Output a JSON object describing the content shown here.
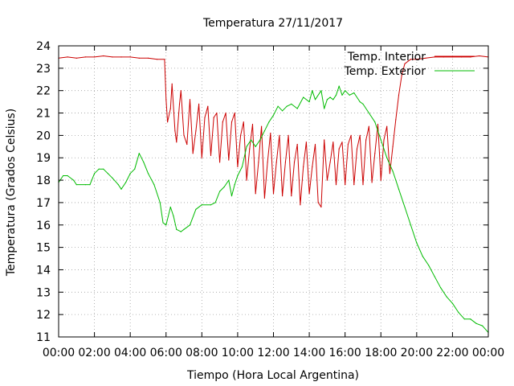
{
  "chart_data": {
    "type": "line",
    "title": "Temperatura 27/11/2017",
    "xlabel": "Tiempo (Hora Local Argentina)",
    "ylabel": "Temperatura (Grados Celsius)",
    "xlim": [
      "00:00",
      "24:00"
    ],
    "ylim": [
      11,
      24
    ],
    "grid": true,
    "legend_position": "top-right",
    "x_tick_labels": [
      "00:00",
      "02:00",
      "04:00",
      "06:00",
      "08:00",
      "10:00",
      "12:00",
      "14:00",
      "16:00",
      "18:00",
      "20:00",
      "22:00",
      "00:00"
    ],
    "y_tick_labels": [
      "11",
      "12",
      "13",
      "14",
      "15",
      "16",
      "17",
      "18",
      "19",
      "20",
      "21",
      "22",
      "23",
      "24"
    ],
    "series": [
      {
        "name": "Temp. Interior",
        "color": "#cc0000",
        "points": [
          [
            "00:00",
            23.45
          ],
          [
            "00:30",
            23.5
          ],
          [
            "01:00",
            23.45
          ],
          [
            "01:30",
            23.5
          ],
          [
            "02:00",
            23.5
          ],
          [
            "02:30",
            23.55
          ],
          [
            "03:00",
            23.5
          ],
          [
            "03:30",
            23.5
          ],
          [
            "04:00",
            23.5
          ],
          [
            "04:30",
            23.45
          ],
          [
            "05:00",
            23.45
          ],
          [
            "05:30",
            23.4
          ],
          [
            "05:55",
            23.4
          ],
          [
            "06:00",
            21.6
          ],
          [
            "06:05",
            20.6
          ],
          [
            "06:15",
            21.2
          ],
          [
            "06:20",
            22.3
          ],
          [
            "06:30",
            20.2
          ],
          [
            "06:35",
            19.7
          ],
          [
            "06:45",
            21.4
          ],
          [
            "06:50",
            22.0
          ],
          [
            "07:00",
            20.0
          ],
          [
            "07:10",
            19.6
          ],
          [
            "07:20",
            21.6
          ],
          [
            "07:30",
            19.2
          ],
          [
            "07:40",
            20.2
          ],
          [
            "07:50",
            21.4
          ],
          [
            "08:00",
            19.0
          ],
          [
            "08:10",
            20.8
          ],
          [
            "08:20",
            21.3
          ],
          [
            "08:30",
            19.1
          ],
          [
            "08:40",
            20.8
          ],
          [
            "08:50",
            21.0
          ],
          [
            "09:00",
            18.8
          ],
          [
            "09:10",
            20.6
          ],
          [
            "09:20",
            21.0
          ],
          [
            "09:30",
            18.9
          ],
          [
            "09:40",
            20.6
          ],
          [
            "09:50",
            21.0
          ],
          [
            "10:00",
            18.6
          ],
          [
            "10:10",
            20.0
          ],
          [
            "10:20",
            20.6
          ],
          [
            "10:30",
            18.0
          ],
          [
            "10:40",
            19.4
          ],
          [
            "10:50",
            20.5
          ],
          [
            "11:00",
            17.4
          ],
          [
            "11:10",
            18.8
          ],
          [
            "11:20",
            20.4
          ],
          [
            "11:30",
            17.2
          ],
          [
            "11:40",
            18.8
          ],
          [
            "11:50",
            20.1
          ],
          [
            "12:00",
            17.4
          ],
          [
            "12:10",
            18.8
          ],
          [
            "12:20",
            20.0
          ],
          [
            "12:30",
            17.3
          ],
          [
            "12:40",
            18.8
          ],
          [
            "12:50",
            20.0
          ],
          [
            "13:00",
            17.3
          ],
          [
            "13:10",
            18.8
          ],
          [
            "13:20",
            19.6
          ],
          [
            "13:30",
            16.9
          ],
          [
            "13:40",
            18.6
          ],
          [
            "13:50",
            19.7
          ],
          [
            "14:00",
            17.4
          ],
          [
            "14:10",
            18.6
          ],
          [
            "14:20",
            19.6
          ],
          [
            "14:30",
            17.0
          ],
          [
            "14:40",
            16.8
          ],
          [
            "14:50",
            19.8
          ],
          [
            "15:00",
            18.0
          ],
          [
            "15:10",
            18.8
          ],
          [
            "15:20",
            19.7
          ],
          [
            "15:30",
            17.8
          ],
          [
            "15:40",
            19.4
          ],
          [
            "15:50",
            19.7
          ],
          [
            "16:00",
            17.8
          ],
          [
            "16:10",
            19.6
          ],
          [
            "16:20",
            20.0
          ],
          [
            "16:30",
            17.8
          ],
          [
            "16:40",
            19.4
          ],
          [
            "16:50",
            20.0
          ],
          [
            "17:00",
            17.8
          ],
          [
            "17:10",
            19.8
          ],
          [
            "17:20",
            20.4
          ],
          [
            "17:30",
            17.9
          ],
          [
            "17:40",
            19.2
          ],
          [
            "17:50",
            20.5
          ],
          [
            "18:00",
            18.0
          ],
          [
            "18:10",
            19.8
          ],
          [
            "18:20",
            20.4
          ],
          [
            "18:30",
            18.3
          ],
          [
            "18:40",
            19.5
          ],
          [
            "18:50",
            20.7
          ],
          [
            "19:00",
            21.8
          ],
          [
            "19:10",
            22.7
          ],
          [
            "19:20",
            23.2
          ],
          [
            "19:40",
            23.4
          ],
          [
            "20:00",
            23.4
          ],
          [
            "20:30",
            23.45
          ],
          [
            "21:00",
            23.5
          ],
          [
            "21:30",
            23.5
          ],
          [
            "22:00",
            23.5
          ],
          [
            "22:30",
            23.5
          ],
          [
            "23:00",
            23.5
          ],
          [
            "23:30",
            23.55
          ],
          [
            "24:00",
            23.5
          ]
        ]
      },
      {
        "name": "Temp. Exterior",
        "color": "#00bb00",
        "points": [
          [
            "00:00",
            17.9
          ],
          [
            "00:15",
            18.2
          ],
          [
            "00:30",
            18.2
          ],
          [
            "00:50",
            18.0
          ],
          [
            "01:00",
            17.8
          ],
          [
            "01:30",
            17.8
          ],
          [
            "01:45",
            17.8
          ],
          [
            "02:00",
            18.3
          ],
          [
            "02:15",
            18.5
          ],
          [
            "02:30",
            18.5
          ],
          [
            "02:45",
            18.3
          ],
          [
            "03:00",
            18.1
          ],
          [
            "03:20",
            17.8
          ],
          [
            "03:30",
            17.6
          ],
          [
            "03:45",
            17.9
          ],
          [
            "04:00",
            18.3
          ],
          [
            "04:15",
            18.5
          ],
          [
            "04:30",
            19.2
          ],
          [
            "04:45",
            18.8
          ],
          [
            "05:00",
            18.3
          ],
          [
            "05:20",
            17.8
          ],
          [
            "05:40",
            17.0
          ],
          [
            "05:50",
            16.1
          ],
          [
            "06:00",
            16.0
          ],
          [
            "06:15",
            16.8
          ],
          [
            "06:25",
            16.4
          ],
          [
            "06:35",
            15.8
          ],
          [
            "06:50",
            15.7
          ],
          [
            "07:00",
            15.8
          ],
          [
            "07:20",
            16.0
          ],
          [
            "07:40",
            16.7
          ],
          [
            "08:00",
            16.9
          ],
          [
            "08:30",
            16.9
          ],
          [
            "08:45",
            17.0
          ],
          [
            "09:00",
            17.5
          ],
          [
            "09:15",
            17.7
          ],
          [
            "09:30",
            18.0
          ],
          [
            "09:40",
            17.3
          ],
          [
            "09:50",
            17.8
          ],
          [
            "10:00",
            18.2
          ],
          [
            "10:15",
            18.6
          ],
          [
            "10:30",
            19.5
          ],
          [
            "10:45",
            19.8
          ],
          [
            "11:00",
            19.5
          ],
          [
            "11:15",
            19.8
          ],
          [
            "11:30",
            20.2
          ],
          [
            "11:45",
            20.6
          ],
          [
            "12:00",
            20.9
          ],
          [
            "12:15",
            21.3
          ],
          [
            "12:30",
            21.1
          ],
          [
            "12:45",
            21.3
          ],
          [
            "13:00",
            21.4
          ],
          [
            "13:20",
            21.2
          ],
          [
            "13:40",
            21.7
          ],
          [
            "14:00",
            21.5
          ],
          [
            "14:10",
            22.0
          ],
          [
            "14:20",
            21.6
          ],
          [
            "14:40",
            22.0
          ],
          [
            "14:50",
            21.2
          ],
          [
            "15:00",
            21.6
          ],
          [
            "15:10",
            21.7
          ],
          [
            "15:20",
            21.6
          ],
          [
            "15:30",
            21.8
          ],
          [
            "15:40",
            22.2
          ],
          [
            "15:50",
            21.8
          ],
          [
            "16:00",
            22.0
          ],
          [
            "16:15",
            21.8
          ],
          [
            "16:30",
            21.9
          ],
          [
            "16:50",
            21.5
          ],
          [
            "17:00",
            21.4
          ],
          [
            "17:20",
            21.0
          ],
          [
            "17:40",
            20.6
          ],
          [
            "18:00",
            19.8
          ],
          [
            "18:20",
            19.0
          ],
          [
            "18:40",
            18.4
          ],
          [
            "19:00",
            17.6
          ],
          [
            "19:20",
            16.8
          ],
          [
            "19:40",
            16.0
          ],
          [
            "20:00",
            15.2
          ],
          [
            "20:20",
            14.6
          ],
          [
            "20:40",
            14.2
          ],
          [
            "21:00",
            13.7
          ],
          [
            "21:20",
            13.2
          ],
          [
            "21:40",
            12.8
          ],
          [
            "22:00",
            12.5
          ],
          [
            "22:20",
            12.1
          ],
          [
            "22:40",
            11.8
          ],
          [
            "23:00",
            11.8
          ],
          [
            "23:20",
            11.6
          ],
          [
            "23:40",
            11.5
          ],
          [
            "24:00",
            11.2
          ]
        ]
      }
    ]
  }
}
